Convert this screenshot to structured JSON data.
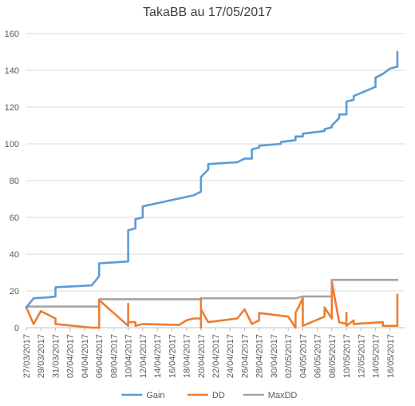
{
  "chart_data": {
    "type": "line",
    "title": "TakaBB au 17/05/2017",
    "xlabel": "",
    "ylabel": "",
    "ylim": [
      0,
      160
    ],
    "yticks": [
      0,
      20,
      40,
      60,
      80,
      100,
      120,
      140,
      160
    ],
    "xlim": [
      "2017-03-27",
      "2017-05-18"
    ],
    "xtick_labels": [
      "27/03/2017",
      "29/03/2017",
      "31/03/2017",
      "02/04/2017",
      "04/04/2017",
      "06/04/2017",
      "08/04/2017",
      "10/04/2017",
      "12/04/2017",
      "14/04/2017",
      "16/04/2017",
      "18/04/2017",
      "20/04/2017",
      "22/04/2017",
      "24/04/2017",
      "26/04/2017",
      "28/04/2017",
      "30/04/2017",
      "02/05/2017",
      "04/05/2017",
      "06/05/2017",
      "08/05/2017",
      "10/05/2017",
      "12/05/2017",
      "14/05/2017",
      "16/05/2017"
    ],
    "grid": "horizontal",
    "legend_position": "bottom",
    "series": [
      {
        "name": "Gain",
        "color": "#5B9BD5",
        "points": [
          [
            "2017-03-27",
            11
          ],
          [
            "2017-03-28",
            16
          ],
          [
            "2017-03-30",
            16.5
          ],
          [
            "2017-03-31",
            17
          ],
          [
            "2017-03-31",
            22
          ],
          [
            "2017-04-05",
            23
          ],
          [
            "2017-04-06",
            28
          ],
          [
            "2017-04-06",
            35
          ],
          [
            "2017-04-10",
            36
          ],
          [
            "2017-04-10",
            53
          ],
          [
            "2017-04-11",
            54
          ],
          [
            "2017-04-11",
            59
          ],
          [
            "2017-04-12",
            60
          ],
          [
            "2017-04-12",
            66
          ],
          [
            "2017-04-19",
            72
          ],
          [
            "2017-04-20",
            74
          ],
          [
            "2017-04-20",
            82
          ],
          [
            "2017-04-21",
            86
          ],
          [
            "2017-04-21",
            89
          ],
          [
            "2017-04-25",
            90
          ],
          [
            "2017-04-26",
            92
          ],
          [
            "2017-04-27",
            92
          ],
          [
            "2017-04-27",
            97
          ],
          [
            "2017-04-28",
            98
          ],
          [
            "2017-04-28",
            99
          ],
          [
            "2017-05-01",
            100
          ],
          [
            "2017-05-01",
            101
          ],
          [
            "2017-05-03",
            102
          ],
          [
            "2017-05-03",
            104
          ],
          [
            "2017-05-04",
            104
          ],
          [
            "2017-05-04",
            105.5
          ],
          [
            "2017-05-07",
            107
          ],
          [
            "2017-05-07",
            108
          ],
          [
            "2017-05-08",
            109
          ],
          [
            "2017-05-08",
            110
          ],
          [
            "2017-05-09",
            114
          ],
          [
            "2017-05-09",
            116
          ],
          [
            "2017-05-10",
            116
          ],
          [
            "2017-05-10",
            123
          ],
          [
            "2017-05-11",
            124
          ],
          [
            "2017-05-11",
            126
          ],
          [
            "2017-05-14",
            131
          ],
          [
            "2017-05-14",
            136
          ],
          [
            "2017-05-15",
            138
          ],
          [
            "2017-05-16",
            141
          ],
          [
            "2017-05-17",
            142
          ],
          [
            "2017-05-17",
            150
          ]
        ]
      },
      {
        "name": "DD",
        "color": "#ED7D31",
        "points": [
          [
            "2017-03-27",
            11
          ],
          [
            "2017-03-28",
            2
          ],
          [
            "2017-03-29",
            9
          ],
          [
            "2017-03-31",
            5
          ],
          [
            "2017-03-31",
            2
          ],
          [
            "2017-04-05",
            0
          ],
          [
            "2017-04-06",
            0
          ],
          [
            "2017-04-06",
            15
          ],
          [
            "2017-04-10",
            1
          ],
          [
            "2017-04-10",
            13
          ],
          [
            "2017-04-10",
            3
          ],
          [
            "2017-04-11",
            3
          ],
          [
            "2017-04-11",
            1
          ],
          [
            "2017-04-12",
            2
          ],
          [
            "2017-04-17",
            1.5
          ],
          [
            "2017-04-18",
            4
          ],
          [
            "2017-04-19",
            5
          ],
          [
            "2017-04-20",
            5
          ],
          [
            "2017-04-20",
            16
          ],
          [
            "2017-04-20",
            0
          ],
          [
            "2017-04-20",
            10
          ],
          [
            "2017-04-21",
            3
          ],
          [
            "2017-04-25",
            5
          ],
          [
            "2017-04-26",
            10
          ],
          [
            "2017-04-27",
            2
          ],
          [
            "2017-04-28",
            4
          ],
          [
            "2017-04-28",
            8
          ],
          [
            "2017-05-02",
            6
          ],
          [
            "2017-05-03",
            0
          ],
          [
            "2017-05-03",
            8
          ],
          [
            "2017-05-04",
            16
          ],
          [
            "2017-05-04",
            1
          ],
          [
            "2017-05-07",
            6
          ],
          [
            "2017-05-07",
            11
          ],
          [
            "2017-05-08",
            5
          ],
          [
            "2017-05-08",
            25
          ],
          [
            "2017-05-09",
            3
          ],
          [
            "2017-05-10",
            2
          ],
          [
            "2017-05-10",
            8
          ],
          [
            "2017-05-10",
            1
          ],
          [
            "2017-05-11",
            4
          ],
          [
            "2017-05-11",
            2
          ],
          [
            "2017-05-15",
            3
          ],
          [
            "2017-05-15",
            1
          ],
          [
            "2017-05-17",
            1
          ],
          [
            "2017-05-17",
            18
          ]
        ]
      },
      {
        "name": "MaxDD",
        "color": "#A5A5A5",
        "points": [
          [
            "2017-03-27",
            11.5
          ],
          [
            "2017-04-06",
            11.5
          ],
          [
            "2017-04-06",
            15.5
          ],
          [
            "2017-04-20",
            15.5
          ],
          [
            "2017-04-20",
            16
          ],
          [
            "2017-05-03",
            16
          ],
          [
            "2017-05-04",
            17
          ],
          [
            "2017-05-08",
            17
          ],
          [
            "2017-05-08",
            26
          ],
          [
            "2017-05-17",
            26
          ]
        ]
      }
    ]
  }
}
